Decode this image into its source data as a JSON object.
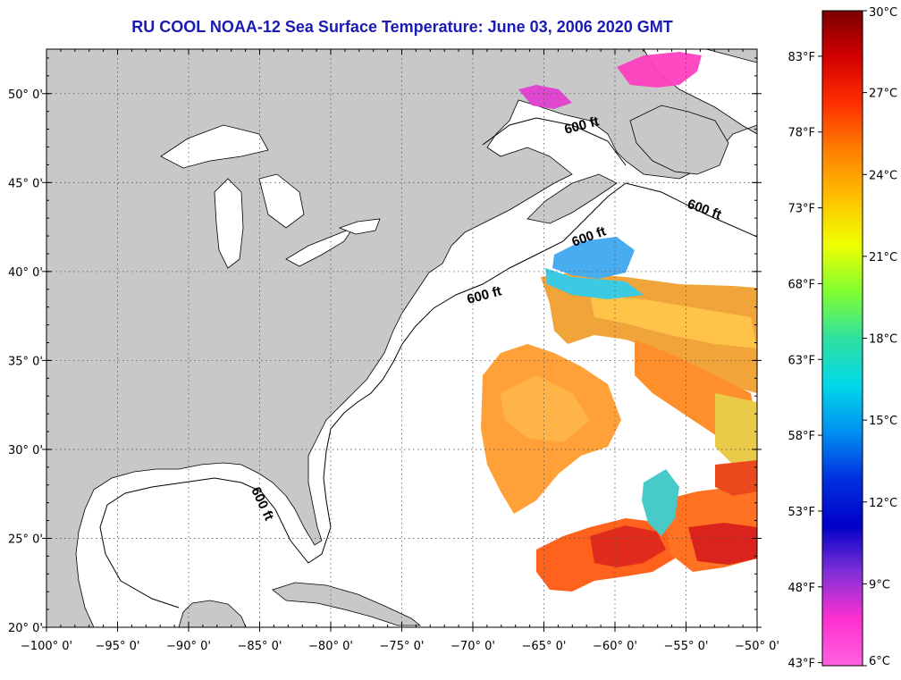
{
  "title": "RU COOL  NOAA-12  Sea Surface Temperature:  June 03, 2006 2020 GMT",
  "map": {
    "lon_range": [
      -100,
      -50
    ],
    "lat_range": [
      20,
      52.5
    ],
    "x_ticks": [
      "−100° 0'",
      "−95° 0'",
      "−90° 0'",
      "−85° 0'",
      "−80° 0'",
      "−75° 0'",
      "−70° 0'",
      "−65° 0'",
      "−60° 0'",
      "−55° 0'",
      "−50° 0'"
    ],
    "y_ticks": [
      "20° 0'",
      "25° 0'",
      "30° 0'",
      "35° 0'",
      "40° 0'",
      "45° 0'",
      "50° 0'"
    ],
    "contour_labels": [
      "600 ft",
      "600 ft",
      "600 ft",
      "600 ft",
      "600 ft"
    ],
    "colors": {
      "land": "#c8c8c8",
      "ocean": "#ffffff",
      "grid": "#555555"
    }
  },
  "colorbar": {
    "celsius": [
      "30°C",
      "27°C",
      "24°C",
      "21°C",
      "18°C",
      "15°C",
      "12°C",
      "9°C",
      "6°C"
    ],
    "fahrenheit": [
      "83°F",
      "78°F",
      "73°F",
      "68°F",
      "63°F",
      "58°F",
      "53°F",
      "48°F",
      "43°F"
    ],
    "gradient": [
      "#7a0000",
      "#d40000",
      "#ff3000",
      "#ff8000",
      "#ffc000",
      "#f0ff00",
      "#80ff30",
      "#30e0a0",
      "#00d8e8",
      "#0090f0",
      "#0030e0",
      "#0000c8",
      "#8030d8",
      "#ff30d0",
      "#ff60e0"
    ]
  }
}
